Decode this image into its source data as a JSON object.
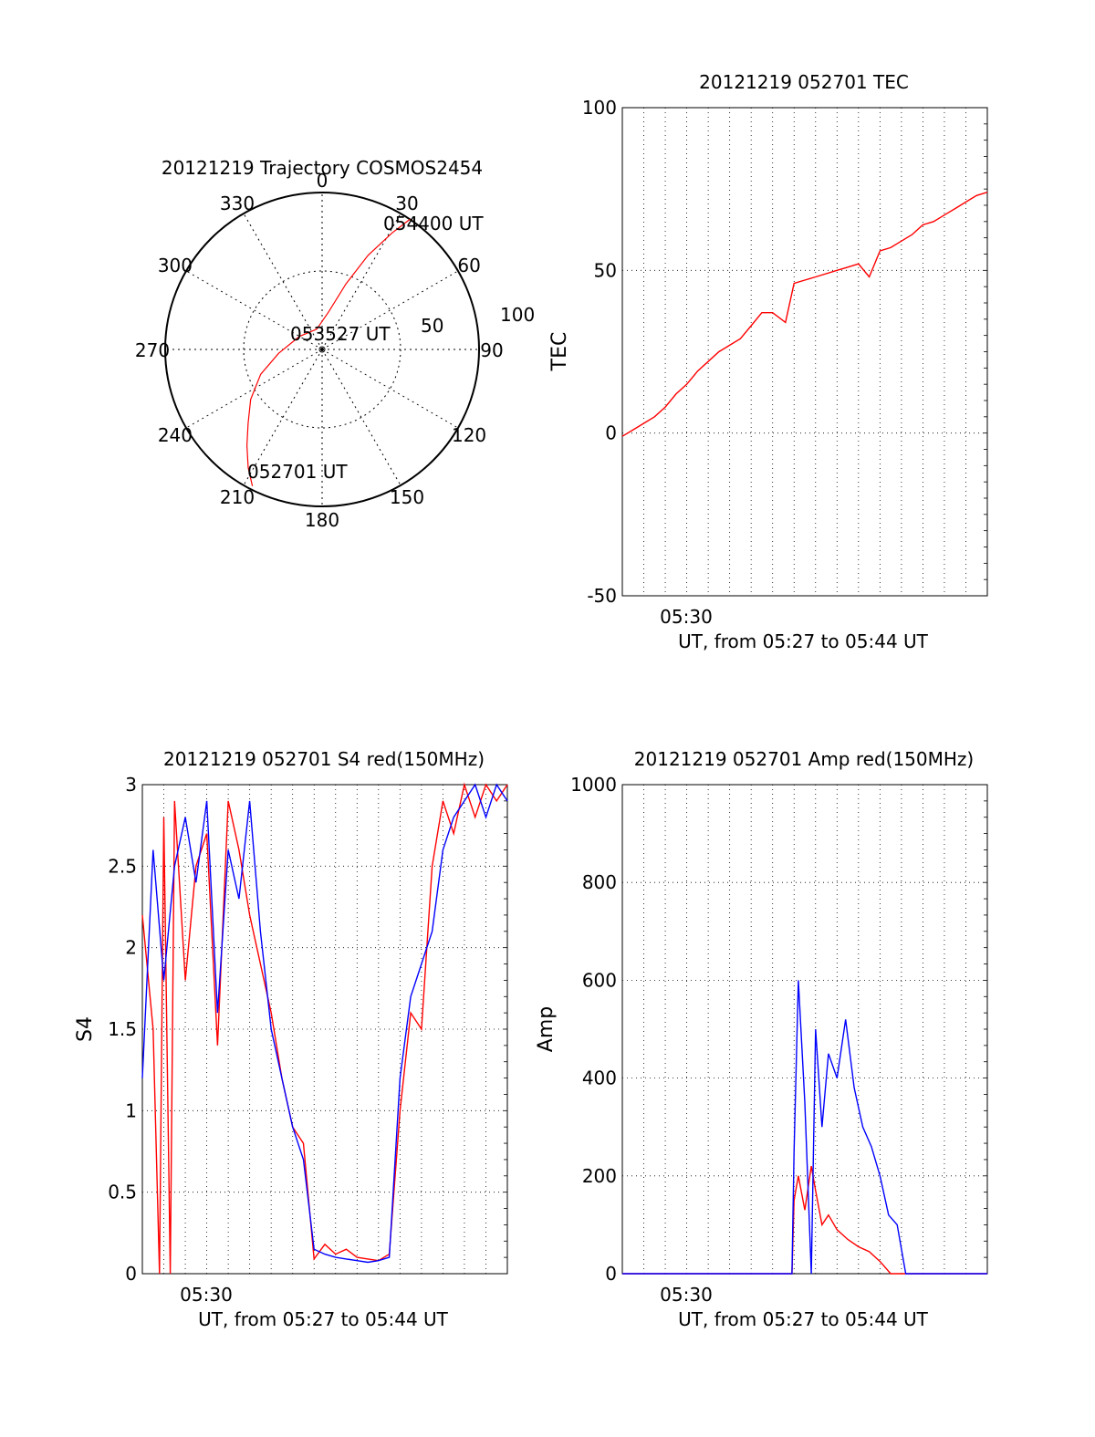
{
  "chart_data": [
    {
      "id": "polar",
      "type": "scatter",
      "title": "20121219 Trajectory COSMOS2454",
      "angle_labels": [
        "0",
        "30",
        "60",
        "90",
        "120",
        "150",
        "180",
        "210",
        "240",
        "270",
        "300",
        "330"
      ],
      "radial_labels": [
        "50",
        "100"
      ],
      "trajectory": {
        "azimuth_deg": [
          207,
          212,
          218,
          225,
          235,
          248,
          265,
          300,
          345,
          10,
          20,
          26,
          31,
          34
        ],
        "zenith_deg": [
          88,
          80,
          70,
          60,
          50,
          38,
          25,
          15,
          12,
          22,
          40,
          60,
          78,
          90
        ],
        "color": "#ff0000"
      },
      "annotations": [
        "054400 UT",
        "053527 UT",
        "052701 UT"
      ]
    },
    {
      "id": "tec",
      "type": "line",
      "title": "20121219 052701 TEC",
      "ylabel": "TEC",
      "xlabel": "UT, from 05:27 to 05:44 UT",
      "xtick_label": "05:30",
      "yticks": [
        "100",
        "50",
        "0",
        "-50"
      ],
      "ylim": [
        -50,
        100
      ],
      "xlim_min": [
        0,
        17
      ],
      "grid": true,
      "series": [
        {
          "color": "#ff0000",
          "x": [
            0,
            0.5,
            1,
            1.5,
            2,
            2.5,
            3,
            3.5,
            4,
            4.5,
            5,
            5.5,
            6,
            6.5,
            7,
            7.6,
            8,
            8.5,
            9,
            10,
            10.5,
            11,
            11.5,
            12,
            12.5,
            13,
            13.5,
            14,
            14.5,
            15,
            15.5,
            16,
            16.5,
            17
          ],
          "y": [
            -1,
            1,
            3,
            5,
            8,
            12,
            15,
            19,
            22,
            25,
            27,
            29,
            33,
            37,
            37,
            34,
            46,
            47,
            48,
            50,
            51,
            52,
            48,
            56,
            57,
            59,
            61,
            64,
            65,
            67,
            69,
            71,
            73,
            74
          ]
        }
      ]
    },
    {
      "id": "s4",
      "type": "line",
      "title": "20121219 052701 S4 red(150MHz)",
      "ylabel": "S4",
      "xlabel": "UT, from 05:27 to 05:44 UT",
      "xtick_label": "05:30",
      "yticks": [
        "3",
        "2.5",
        "2",
        "1.5",
        "1",
        "0.5",
        "0"
      ],
      "ylim": [
        0,
        3
      ],
      "xlim_min": [
        0,
        17
      ],
      "grid": true,
      "series": [
        {
          "color": "#ff0000",
          "x": [
            0,
            0.5,
            0.8,
            1,
            1.3,
            1.5,
            2,
            2.5,
            3,
            3.5,
            4,
            4.5,
            5,
            5.5,
            6,
            6.5,
            7,
            7.5,
            8,
            8.5,
            9,
            9.5,
            10,
            10.5,
            11,
            11.5,
            12,
            12.5,
            13,
            13.5,
            14,
            14.5,
            15,
            15.5,
            16,
            16.5,
            17
          ],
          "y": [
            2.2,
            1.5,
            0,
            2.8,
            0,
            2.9,
            1.8,
            2.5,
            2.7,
            1.4,
            2.9,
            2.6,
            2.2,
            1.9,
            1.6,
            1.2,
            0.9,
            0.8,
            0.09,
            0.18,
            0.12,
            0.15,
            0.1,
            0.09,
            0.08,
            0.12,
            1.0,
            1.6,
            1.5,
            2.5,
            2.9,
            2.7,
            3.0,
            2.8,
            3.0,
            2.9,
            3.0
          ]
        },
        {
          "color": "#0000ff",
          "x": [
            0,
            0.5,
            1,
            1.5,
            2,
            2.5,
            3,
            3.5,
            4,
            4.5,
            5,
            5.5,
            6,
            6.5,
            7,
            7.5,
            8,
            8.5,
            9,
            9.5,
            10,
            10.5,
            11,
            11.5,
            12,
            12.5,
            13,
            13.5,
            14,
            14.5,
            15,
            15.5,
            16,
            16.5,
            17
          ],
          "y": [
            1.2,
            2.6,
            1.8,
            2.5,
            2.8,
            2.4,
            2.9,
            1.6,
            2.6,
            2.3,
            2.9,
            2.1,
            1.5,
            1.2,
            0.9,
            0.7,
            0.15,
            0.12,
            0.1,
            0.09,
            0.08,
            0.07,
            0.08,
            0.1,
            1.2,
            1.7,
            1.9,
            2.1,
            2.6,
            2.8,
            2.9,
            3.0,
            2.8,
            3.0,
            2.9
          ]
        }
      ]
    },
    {
      "id": "amp",
      "type": "line",
      "title": "20121219 052701 Amp red(150MHz)",
      "ylabel": "Amp",
      "xlabel": "UT, from 05:27 to 05:44 UT",
      "xtick_label": "05:30",
      "yticks": [
        "1000",
        "800",
        "600",
        "400",
        "200",
        "0"
      ],
      "ylim": [
        0,
        1000
      ],
      "xlim_min": [
        0,
        17
      ],
      "grid": true,
      "series": [
        {
          "color": "#ff0000",
          "x": [
            0,
            4,
            7.9,
            8.0,
            8.2,
            8.5,
            8.8,
            9.0,
            9.3,
            9.6,
            10,
            10.5,
            11,
            11.5,
            12,
            12.5,
            13,
            17
          ],
          "y": [
            0,
            0,
            0,
            150,
            200,
            130,
            220,
            170,
            100,
            120,
            90,
            70,
            55,
            45,
            25,
            0,
            0,
            0
          ]
        },
        {
          "color": "#0000ff",
          "x": [
            0,
            4,
            7.9,
            8.0,
            8.2,
            8.5,
            8.8,
            9.0,
            9.3,
            9.6,
            10,
            10.4,
            10.8,
            11.2,
            11.6,
            12,
            12.4,
            12.8,
            13.2,
            17
          ],
          "y": [
            0,
            0,
            0,
            250,
            600,
            350,
            0,
            500,
            300,
            450,
            400,
            520,
            380,
            300,
            260,
            200,
            120,
            100,
            0,
            0
          ]
        }
      ]
    }
  ]
}
